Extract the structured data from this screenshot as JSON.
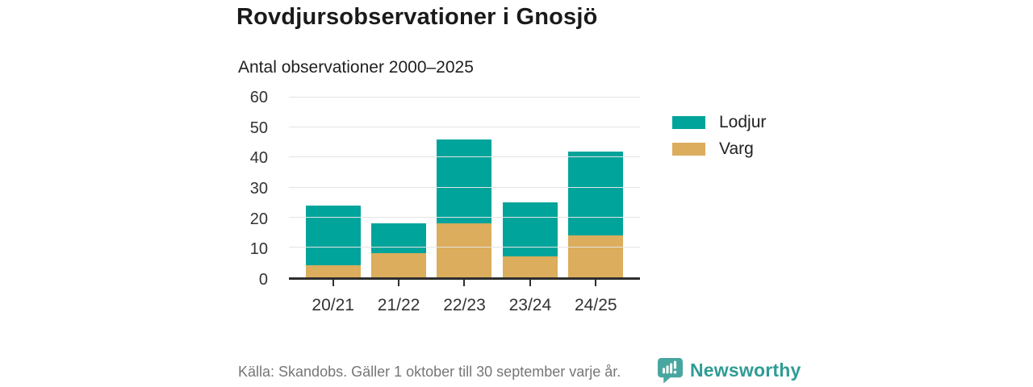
{
  "header": {
    "title": "Rovdjursobservationer i Gnosjö",
    "subtitle": "Antal observationer 2000–2025"
  },
  "chart_data": {
    "type": "bar",
    "stacked": true,
    "title": "Rovdjursobservationer i Gnosjö",
    "subtitle": "Antal observationer 2000–2025",
    "xlabel": "",
    "ylabel": "",
    "categories": [
      "20/21",
      "21/22",
      "22/23",
      "23/24",
      "24/25"
    ],
    "series": [
      {
        "name": "Varg",
        "color": "#DBAD5C",
        "values": [
          4,
          8,
          18,
          7,
          14
        ]
      },
      {
        "name": "Lodjur",
        "color": "#00A49B",
        "values": [
          20,
          10,
          28,
          18,
          28
        ]
      }
    ],
    "totals": [
      24,
      18,
      46,
      25,
      42
    ],
    "ylim": [
      0,
      60
    ],
    "ytick_step": 10,
    "grid": "horizontal",
    "legend_position": "right"
  },
  "legend": {
    "items": [
      {
        "label": "Lodjur",
        "color": "#00A49B"
      },
      {
        "label": "Varg",
        "color": "#DBAD5C"
      }
    ]
  },
  "footer": {
    "source": "Källa: Skandobs. Gäller 1 oktober till 30 september varje år.",
    "brand": "Newsworthy"
  },
  "icons": {
    "brand_icon": "speech-bubble-bar-chart-exclamation"
  },
  "colors": {
    "lodjur": "#00A49B",
    "varg": "#DBAD5C",
    "grid": "#E3E3E3",
    "axis": "#2E2E2E",
    "title_text": "#1A1A1A",
    "tick_text": "#333333",
    "source_text": "#767676",
    "brand_teal": "#2F9C95",
    "logo_teal": "#47A7A0"
  }
}
